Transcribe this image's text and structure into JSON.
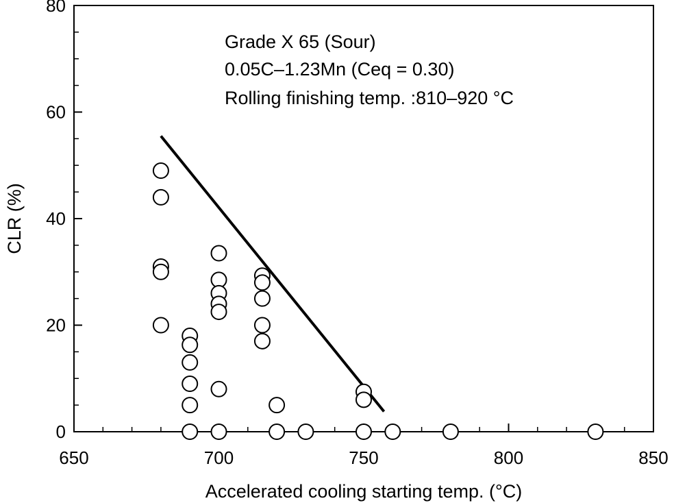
{
  "chart_data": {
    "type": "scatter",
    "xlabel": "Accelerated cooling starting temp. (°C)",
    "ylabel": "CLR (%)",
    "xlim": [
      650,
      850
    ],
    "ylim": [
      0,
      80
    ],
    "x_ticks": [
      650,
      700,
      750,
      800,
      850
    ],
    "y_ticks": [
      0,
      20,
      40,
      60,
      80
    ],
    "grid": false,
    "annotations": [
      "Grade X 65 (Sour)",
      "0.05C–1.23Mn (Ceq = 0.30)",
      "Rolling finishing temp. :810–920 °C"
    ],
    "points": [
      {
        "x": 680,
        "y": 49
      },
      {
        "x": 680,
        "y": 44
      },
      {
        "x": 680,
        "y": 31
      },
      {
        "x": 680,
        "y": 30
      },
      {
        "x": 680,
        "y": 20
      },
      {
        "x": 690,
        "y": 18
      },
      {
        "x": 690,
        "y": 16.3
      },
      {
        "x": 690,
        "y": 13
      },
      {
        "x": 690,
        "y": 9
      },
      {
        "x": 690,
        "y": 5
      },
      {
        "x": 690,
        "y": 0
      },
      {
        "x": 700,
        "y": 33.5
      },
      {
        "x": 700,
        "y": 28.5
      },
      {
        "x": 700,
        "y": 26
      },
      {
        "x": 700,
        "y": 24
      },
      {
        "x": 700,
        "y": 22.5
      },
      {
        "x": 700,
        "y": 8
      },
      {
        "x": 700,
        "y": 0
      },
      {
        "x": 715,
        "y": 29.3
      },
      {
        "x": 715,
        "y": 28
      },
      {
        "x": 715,
        "y": 25
      },
      {
        "x": 715,
        "y": 20
      },
      {
        "x": 715,
        "y": 17
      },
      {
        "x": 720,
        "y": 5
      },
      {
        "x": 720,
        "y": 0
      },
      {
        "x": 730,
        "y": 0
      },
      {
        "x": 750,
        "y": 7.5
      },
      {
        "x": 750,
        "y": 6
      },
      {
        "x": 750,
        "y": 0
      },
      {
        "x": 760,
        "y": 0
      },
      {
        "x": 780,
        "y": 0
      },
      {
        "x": 830,
        "y": 0
      }
    ],
    "trend_line": {
      "x": [
        680,
        757
      ],
      "y": [
        55.5,
        3.8
      ]
    }
  }
}
